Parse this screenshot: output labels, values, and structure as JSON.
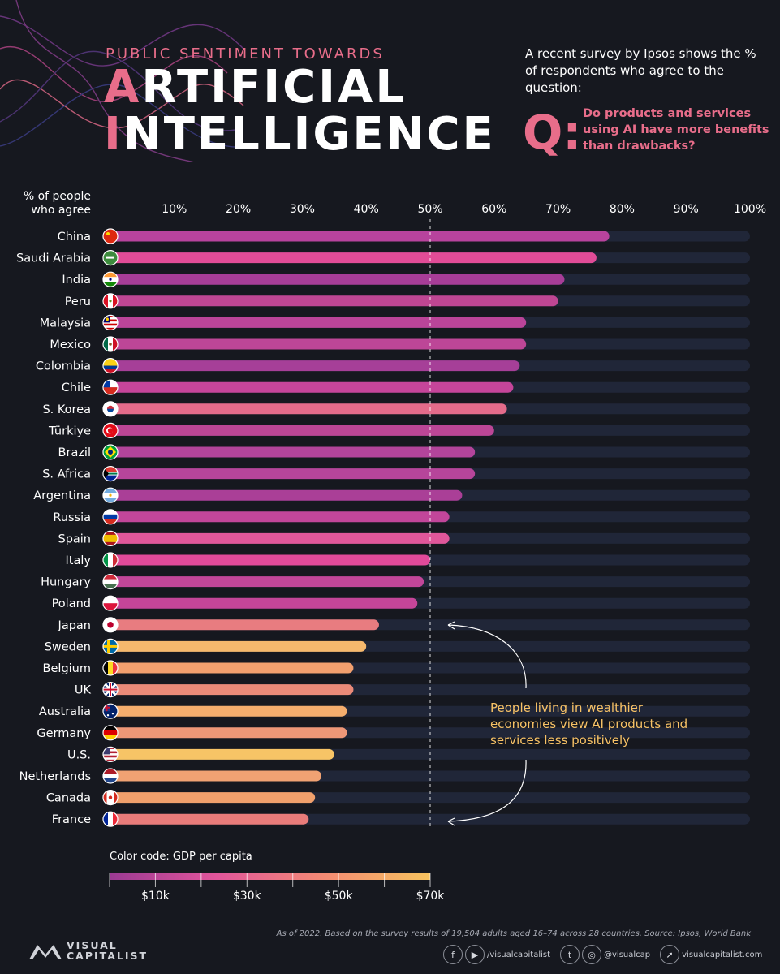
{
  "header": {
    "kicker": "PUBLIC SENTIMENT TOWARDS",
    "title_line1_lead": "A",
    "title_line1_rest": "RTIFICIAL",
    "title_line2_lead": "I",
    "title_line2_rest": "NTELLIGENCE",
    "intro": "A recent survey by Ipsos shows the % of respondents who agree to the question:",
    "q_mark": "Q:",
    "question": "Do products and services using AI have more benefits than drawbacks?"
  },
  "chart_data": {
    "type": "bar",
    "orientation": "horizontal",
    "xlabel": "% of people who agree",
    "xlim": [
      0,
      100
    ],
    "x_ticks": [
      "10%",
      "20%",
      "30%",
      "40%",
      "50%",
      "60%",
      "70%",
      "80%",
      "90%",
      "100%"
    ],
    "reference_line": 50,
    "categories": [
      "China",
      "Saudi Arabia",
      "India",
      "Peru",
      "Malaysia",
      "Mexico",
      "Colombia",
      "Chile",
      "S. Korea",
      "Türkiye",
      "Brazil",
      "S. Africa",
      "Argentina",
      "Russia",
      "Spain",
      "Italy",
      "Hungary",
      "Poland",
      "Japan",
      "Sweden",
      "Belgium",
      "UK",
      "Australia",
      "Germany",
      "U.S.",
      "Netherlands",
      "Canada",
      "France"
    ],
    "values": [
      78,
      76,
      71,
      70,
      65,
      65,
      64,
      63,
      62,
      60,
      57,
      57,
      55,
      53,
      53,
      50,
      49,
      48,
      42,
      40,
      38,
      38,
      37,
      37,
      35,
      33,
      32,
      31
    ],
    "bar_colors": [
      "#b8439d",
      "#e14c97",
      "#a73d97",
      "#bf4693",
      "#bb4499",
      "#bd4697",
      "#a63f98",
      "#c6459a",
      "#e46b8a",
      "#bc4696",
      "#b3449b",
      "#b6459a",
      "#aa3f97",
      "#c2469a",
      "#e0579a",
      "#e14a9a",
      "#c24699",
      "#c54599",
      "#e87c80",
      "#f6b96d",
      "#f2a06e",
      "#ea8a78",
      "#f4ad6d",
      "#ee9777",
      "#f7c466",
      "#f0a273",
      "#f0a06c",
      "#e97c7a"
    ],
    "flags": [
      "cn",
      "sa",
      "in",
      "pe",
      "my",
      "mx",
      "co",
      "cl",
      "kr",
      "tr",
      "br",
      "za",
      "ar",
      "ru",
      "es",
      "it",
      "hu",
      "pl",
      "jp",
      "se",
      "be",
      "gb",
      "au",
      "de",
      "us",
      "nl",
      "ca",
      "fr"
    ],
    "annotation": "People living in wealthier economies view AI products and services less positively",
    "color_legend": {
      "title": "Color code: GDP per capita",
      "tick_labels": [
        "$10k",
        "$30k",
        "$50k",
        "$70k"
      ],
      "gradient": [
        "#9b3a93",
        "#e2559b",
        "#f38a74",
        "#f7c35e"
      ]
    }
  },
  "footer": {
    "source": "As of 2022. Based on the survey results of 19,504 adults aged 16–74 across 28 countries. Source: Ipsos, World Bank",
    "brand_line1": "VISUAL",
    "brand_line2": "CAPITALIST",
    "social_handle_1": "/visualcapitalist",
    "social_handle_2": "@visualcap",
    "website": "visualcapitalist.com"
  }
}
